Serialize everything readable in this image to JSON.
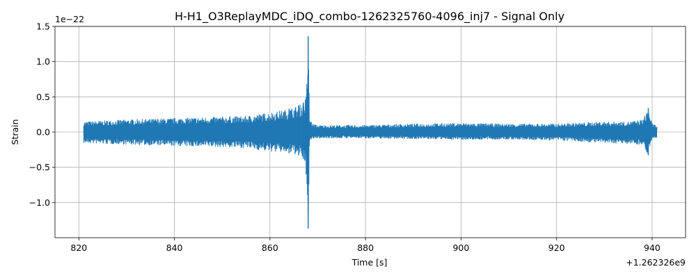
{
  "chart_data": {
    "type": "line",
    "title": "H-H1_O3ReplayMDC_iDQ_combo-1262325760-4096_inj7 - Signal Only",
    "xlabel": "Time [s]",
    "ylabel": "Strain",
    "x_offset_label": "+1.262326e9",
    "y_scale_label": "1e−22",
    "xlim": [
      815,
      947
    ],
    "ylim": [
      -1.5,
      1.5
    ],
    "x_ticks": [
      820,
      840,
      860,
      880,
      900,
      920,
      940
    ],
    "x_tick_labels": [
      "820",
      "840",
      "860",
      "880",
      "900",
      "920",
      "940"
    ],
    "y_ticks": [
      -1.0,
      -0.5,
      0.0,
      0.5,
      1.0,
      1.5
    ],
    "y_tick_labels": [
      "−1.0",
      "−0.5",
      "0.0",
      "0.5",
      "1.0",
      "1.5"
    ],
    "grid": true,
    "line_color": "#1f77b4",
    "series": [
      {
        "x": [
          821.0,
          830.0,
          840.0,
          850.0,
          855.0,
          860.0,
          864.0,
          866.0,
          867.0,
          867.6,
          868.0,
          868.3,
          869.0,
          870.0,
          880.0,
          890.0,
          900.0,
          910.0,
          920.0,
          930.0,
          935.0,
          938.0,
          939.2,
          940.0,
          941.0
        ],
        "upper": [
          0.15,
          0.18,
          0.2,
          0.22,
          0.23,
          0.28,
          0.33,
          0.38,
          0.42,
          0.5,
          1.36,
          0.2,
          0.12,
          0.1,
          0.1,
          0.12,
          0.13,
          0.12,
          0.12,
          0.15,
          0.15,
          0.18,
          0.34,
          0.12,
          0.1
        ],
        "lower": [
          -0.16,
          -0.18,
          -0.2,
          -0.22,
          -0.23,
          -0.28,
          -0.3,
          -0.33,
          -0.38,
          -0.6,
          -1.37,
          -0.15,
          -0.1,
          -0.09,
          -0.09,
          -0.1,
          -0.11,
          -0.11,
          -0.12,
          -0.16,
          -0.17,
          -0.18,
          -0.33,
          -0.1,
          -0.08
        ]
      }
    ]
  }
}
